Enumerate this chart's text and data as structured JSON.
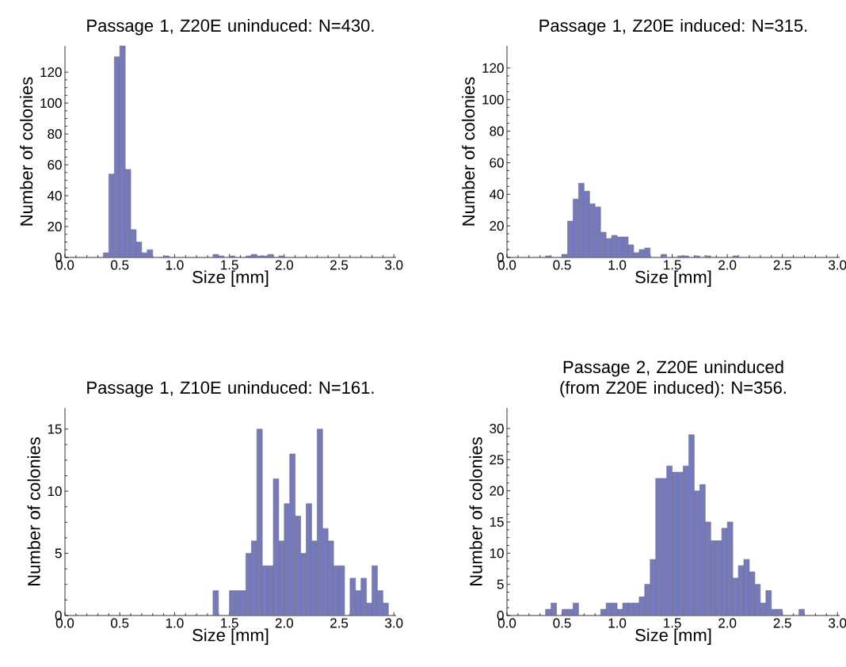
{
  "chart_data": [
    {
      "type": "histogram",
      "title": "Passage 1, Z20E uninduced: N=430.",
      "xlabel": "Size [mm]",
      "ylabel": "Number of colonies",
      "color": "#7579bd",
      "bins": [
        0.35,
        0.4,
        0.45,
        0.5,
        0.55,
        0.6,
        0.65,
        0.7,
        0.75,
        0.8,
        0.85,
        0.9,
        0.95,
        1.0,
        1.05,
        1.1,
        1.15,
        1.2,
        1.25,
        1.3,
        1.35,
        1.4,
        1.45,
        1.5,
        1.55,
        1.6,
        1.65,
        1.7,
        1.75,
        1.8,
        1.85,
        1.9,
        1.95,
        2.0
      ],
      "values": [
        3,
        54,
        130,
        137,
        57,
        18,
        10,
        3,
        5,
        0,
        0,
        1,
        0,
        0,
        0,
        0,
        0,
        0,
        0,
        0,
        2,
        1,
        0,
        1,
        0,
        0,
        1,
        2,
        1,
        1,
        2,
        0,
        1
      ],
      "xlim": [
        0,
        3.02
      ],
      "ylim": [
        0,
        137
      ],
      "xticks": [
        {
          "value": 0,
          "label": "0.0"
        },
        {
          "value": 0.5,
          "label": "0.5"
        },
        {
          "value": 1,
          "label": "1.0"
        },
        {
          "value": 1.5,
          "label": "1.5"
        },
        {
          "value": 2,
          "label": "2.0"
        },
        {
          "value": 2.5,
          "label": "2.5"
        },
        {
          "value": 3,
          "label": "3.0"
        }
      ],
      "yticks": [
        0,
        20,
        40,
        60,
        80,
        100,
        120
      ]
    },
    {
      "type": "histogram",
      "title": "Passage 1, Z20E induced: N=315.",
      "xlabel": "Size [mm]",
      "ylabel": "Number of colonies",
      "color": "#7579bd",
      "bins": [
        0.35,
        0.4,
        0.45,
        0.5,
        0.55,
        0.6,
        0.65,
        0.7,
        0.75,
        0.8,
        0.85,
        0.9,
        0.95,
        1.0,
        1.05,
        1.1,
        1.15,
        1.2,
        1.25,
        1.3,
        1.35,
        1.4,
        1.45,
        1.5,
        1.55,
        1.6,
        1.65,
        1.7,
        1.75,
        1.8,
        1.85,
        1.9,
        1.95,
        2.0,
        2.05,
        2.1
      ],
      "values": [
        1,
        0,
        0,
        2,
        23,
        37,
        47,
        42,
        34,
        32,
        16,
        12,
        14,
        13,
        13,
        8,
        3,
        5,
        6,
        0,
        0,
        2,
        0,
        0,
        1,
        1,
        0,
        1,
        0,
        1,
        0,
        0,
        0,
        0,
        1
      ],
      "xlim": [
        0,
        3.02
      ],
      "ylim": [
        0,
        134
      ],
      "xticks": [
        {
          "value": 0,
          "label": "0.0"
        },
        {
          "value": 0.5,
          "label": "0.5"
        },
        {
          "value": 1,
          "label": "1.0"
        },
        {
          "value": 1.5,
          "label": "1.5"
        },
        {
          "value": 2,
          "label": "2.0"
        },
        {
          "value": 2.5,
          "label": "2.5"
        },
        {
          "value": 3,
          "label": "3.0"
        }
      ],
      "yticks": [
        0,
        20,
        40,
        60,
        80,
        100,
        120
      ]
    },
    {
      "type": "histogram",
      "title": "Passage 1, Z10E uninduced: N=161.",
      "xlabel": "Size [mm]",
      "ylabel": "Number of colonies",
      "color": "#7579bd",
      "bins": [
        1.35,
        1.4,
        1.45,
        1.5,
        1.55,
        1.6,
        1.65,
        1.7,
        1.75,
        1.8,
        1.85,
        1.9,
        1.95,
        2.0,
        2.05,
        2.1,
        2.15,
        2.2,
        2.25,
        2.3,
        2.35,
        2.4,
        2.45,
        2.5,
        2.55,
        2.6,
        2.65,
        2.7,
        2.75,
        2.8,
        2.85,
        2.9,
        2.95
      ],
      "values": [
        2,
        0,
        0,
        2,
        2,
        2,
        5,
        6,
        15,
        4,
        4,
        11,
        6,
        9,
        13,
        8,
        5,
        9,
        6,
        15,
        7,
        6,
        4,
        4,
        0,
        3,
        2,
        3,
        1,
        4,
        2,
        1
      ],
      "xlim": [
        0,
        3.02
      ],
      "ylim": [
        0,
        16.7
      ],
      "xticks": [
        {
          "value": 0,
          "label": "0.0"
        },
        {
          "value": 0.5,
          "label": "0.5"
        },
        {
          "value": 1,
          "label": "1.0"
        },
        {
          "value": 1.5,
          "label": "1.5"
        },
        {
          "value": 2,
          "label": "2.0"
        },
        {
          "value": 2.5,
          "label": "2.5"
        },
        {
          "value": 3,
          "label": "3.0"
        }
      ],
      "yticks": [
        0,
        5,
        10,
        15
      ]
    },
    {
      "type": "histogram",
      "title": "Passage 2, Z20E uninduced (from Z20E induced): N=356.",
      "xlabel": "Size [mm]",
      "ylabel": "Number of colonies",
      "color": "#7579bd",
      "bins": [
        0.35,
        0.4,
        0.45,
        0.5,
        0.55,
        0.6,
        0.65,
        0.7,
        0.75,
        0.8,
        0.85,
        0.9,
        0.95,
        1.0,
        1.05,
        1.1,
        1.15,
        1.2,
        1.25,
        1.3,
        1.35,
        1.4,
        1.45,
        1.5,
        1.55,
        1.6,
        1.65,
        1.7,
        1.75,
        1.8,
        1.85,
        1.9,
        1.95,
        2.0,
        2.05,
        2.1,
        2.15,
        2.2,
        2.25,
        2.3,
        2.35,
        2.4,
        2.45,
        2.5,
        2.55,
        2.6,
        2.65,
        2.7
      ],
      "values": [
        1,
        2,
        0,
        1,
        1,
        2,
        0,
        0,
        0,
        0,
        1,
        2,
        2,
        1,
        2,
        2,
        2,
        3,
        5,
        9,
        22,
        22,
        24,
        23,
        23,
        24,
        29,
        20,
        21,
        15,
        12,
        12,
        14,
        15,
        6,
        8,
        9,
        7,
        5,
        2,
        4,
        1,
        1,
        0,
        0,
        0,
        1
      ],
      "xlim": [
        0,
        3.02
      ],
      "ylim": [
        0,
        33.3
      ],
      "xticks": [
        {
          "value": 0,
          "label": "0.0"
        },
        {
          "value": 0.5,
          "label": "0.5"
        },
        {
          "value": 1,
          "label": "1.0"
        },
        {
          "value": 1.5,
          "label": "1.5"
        },
        {
          "value": 2,
          "label": "2.0"
        },
        {
          "value": 2.5,
          "label": "2.5"
        },
        {
          "value": 3,
          "label": "3.0"
        }
      ],
      "yticks": [
        0,
        5,
        10,
        15,
        20,
        25,
        30
      ]
    }
  ]
}
